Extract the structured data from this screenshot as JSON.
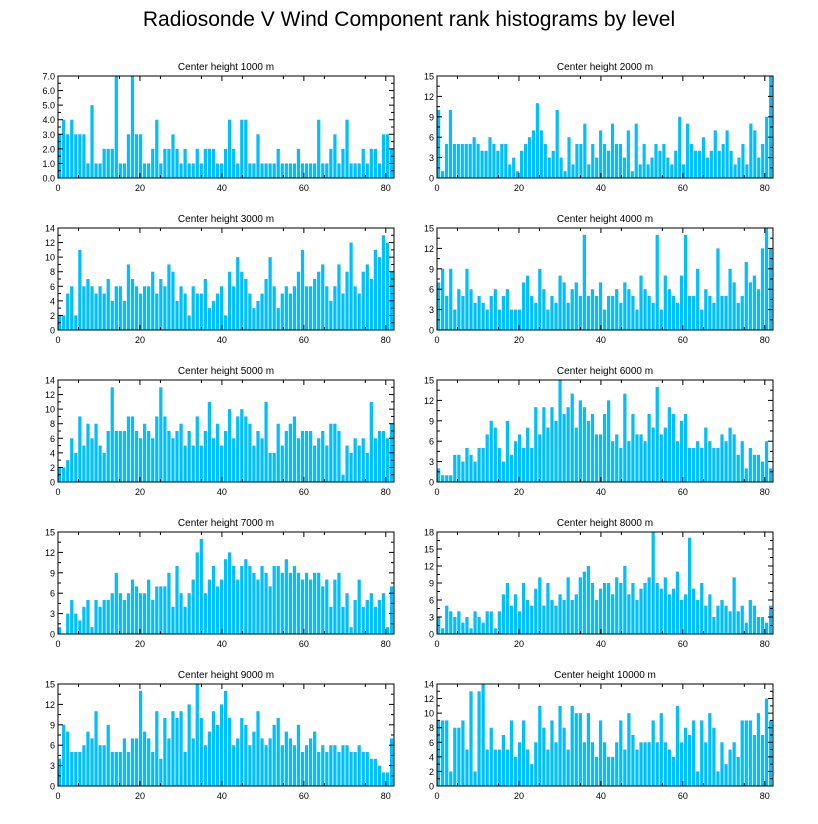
{
  "title": "Radiosonde V Wind Component rank histograms by level",
  "colors": {
    "bar": "#00bfff",
    "axis": "#000000",
    "background": "#ffffff"
  },
  "chart_data": [
    {
      "type": "bar",
      "title": "Center height 1000 m",
      "xlim": [
        0,
        82
      ],
      "ylim": [
        0,
        7
      ],
      "xticks": [
        0,
        20,
        40,
        60,
        80
      ],
      "yticks": [
        0,
        1,
        2,
        3,
        4,
        5,
        6,
        7
      ],
      "ytick_labels": [
        "0.0",
        "1.0",
        "2.0",
        "3.0",
        "4.0",
        "5.0",
        "6.0",
        "7.0"
      ],
      "values": [
        3,
        4,
        3,
        4,
        3,
        3,
        3,
        1,
        5,
        1,
        1,
        2,
        2,
        2,
        7,
        1,
        1,
        3,
        7,
        3,
        3,
        1,
        1,
        2,
        4,
        1,
        2,
        2,
        3,
        2,
        1,
        2,
        1,
        1,
        2,
        1,
        2,
        2,
        2,
        1,
        1,
        2,
        4,
        2,
        1,
        4,
        4,
        1,
        1,
        3,
        1,
        1,
        1,
        1,
        2,
        1,
        1,
        1,
        1,
        2,
        1,
        1,
        1,
        1,
        4,
        1,
        1,
        2,
        3,
        1,
        2,
        4,
        1,
        1,
        1,
        2,
        1,
        2,
        2,
        1,
        3,
        3,
        2
      ]
    },
    {
      "type": "bar",
      "title": "Center height 2000 m",
      "xlim": [
        0,
        82
      ],
      "ylim": [
        0,
        15
      ],
      "xticks": [
        0,
        20,
        40,
        60,
        80
      ],
      "yticks": [
        0,
        3,
        6,
        9,
        12,
        15
      ],
      "ytick_labels": [
        "0",
        "3",
        "6",
        "9",
        "12",
        "15"
      ],
      "values": [
        10,
        1,
        5,
        10,
        5,
        5,
        5,
        5,
        5,
        6,
        5,
        4,
        4,
        6,
        5,
        4,
        5,
        5,
        2,
        3,
        1,
        4,
        5,
        6,
        7,
        11,
        7,
        5,
        3,
        4,
        10,
        3,
        1,
        6,
        2,
        5,
        5,
        8,
        2,
        5,
        3,
        7,
        5,
        4,
        8,
        5,
        5,
        3,
        7,
        1,
        8,
        2,
        5,
        2,
        3,
        5,
        4,
        5,
        3,
        2,
        4,
        9,
        2,
        8,
        5,
        4,
        4,
        6,
        3,
        4,
        7,
        4,
        5,
        7,
        4,
        2,
        3,
        5,
        2,
        8,
        7,
        3,
        5,
        9,
        15
      ]
    },
    {
      "type": "bar",
      "title": "Center height 3000 m",
      "xlim": [
        0,
        82
      ],
      "ylim": [
        0,
        14
      ],
      "xticks": [
        0,
        20,
        40,
        60,
        80
      ],
      "yticks": [
        0,
        2,
        4,
        6,
        8,
        10,
        12,
        14
      ],
      "ytick_labels": [
        "0",
        "2",
        "4",
        "6",
        "8",
        "10",
        "12",
        "14"
      ],
      "values": [
        2,
        2,
        5,
        6,
        2,
        11,
        6,
        7,
        6,
        5,
        6,
        5,
        7,
        4,
        6,
        6,
        4,
        9,
        7,
        6,
        5,
        6,
        6,
        8,
        5,
        7,
        6,
        9,
        8,
        4,
        6,
        5,
        2,
        6,
        5,
        5,
        7,
        3,
        4,
        5,
        6,
        2,
        8,
        6,
        10,
        8,
        7,
        5,
        3,
        4,
        5,
        7,
        10,
        6,
        3,
        5,
        6,
        5,
        6,
        8,
        11,
        6,
        6,
        7,
        8,
        9,
        6,
        4,
        6,
        9,
        5,
        8,
        12,
        6,
        5,
        8,
        9,
        7,
        11,
        10,
        13,
        12,
        8
      ]
    },
    {
      "type": "bar",
      "title": "Center height 4000 m",
      "xlim": [
        0,
        82
      ],
      "ylim": [
        0,
        15
      ],
      "xticks": [
        0,
        20,
        40,
        60,
        80
      ],
      "yticks": [
        0,
        3,
        6,
        9,
        12,
        15
      ],
      "ytick_labels": [
        "0",
        "3",
        "6",
        "9",
        "12",
        "15"
      ],
      "values": [
        7,
        9,
        5,
        9,
        3,
        6,
        5,
        9,
        6,
        4,
        5,
        4,
        3,
        5,
        6,
        3,
        5,
        6,
        3,
        3,
        3,
        7,
        8,
        5,
        4,
        9,
        6,
        3,
        5,
        4,
        8,
        7,
        4,
        6,
        7,
        5,
        14,
        5,
        6,
        5,
        7,
        3,
        5,
        5,
        6,
        4,
        7,
        6,
        5,
        3,
        8,
        6,
        5,
        4,
        14,
        3,
        8,
        6,
        5,
        4,
        8,
        14,
        5,
        5,
        9,
        3,
        6,
        5,
        4,
        12,
        5,
        5,
        9,
        7,
        4,
        5,
        10,
        7,
        8,
        6,
        12,
        15,
        12
      ]
    },
    {
      "type": "bar",
      "title": "Center height 5000 m",
      "xlim": [
        0,
        82
      ],
      "ylim": [
        0,
        14
      ],
      "xticks": [
        0,
        20,
        40,
        60,
        80
      ],
      "yticks": [
        0,
        2,
        4,
        6,
        8,
        10,
        12,
        14
      ],
      "ytick_labels": [
        "0",
        "2",
        "4",
        "6",
        "8",
        "10",
        "12",
        "14"
      ],
      "values": [
        2,
        2,
        3,
        6,
        4,
        9,
        5,
        8,
        6,
        8,
        5,
        4,
        7,
        13,
        7,
        7,
        7,
        9,
        9,
        7,
        6,
        8,
        7,
        6,
        9,
        13,
        9,
        7,
        6,
        7,
        8,
        5,
        7,
        5,
        9,
        5,
        7,
        11,
        6,
        8,
        5,
        7,
        10,
        6,
        9,
        10,
        9,
        8,
        5,
        7,
        6,
        11,
        4,
        4,
        8,
        5,
        7,
        8,
        9,
        6,
        7,
        7,
        7,
        5,
        6,
        7,
        5,
        8,
        8,
        7,
        1,
        5,
        4,
        6,
        5,
        6,
        4,
        11,
        6,
        7,
        7,
        6,
        8
      ]
    },
    {
      "type": "bar",
      "title": "Center height 6000 m",
      "xlim": [
        0,
        82
      ],
      "ylim": [
        0,
        15
      ],
      "xticks": [
        0,
        20,
        40,
        60,
        80
      ],
      "yticks": [
        0,
        3,
        6,
        9,
        12,
        15
      ],
      "ytick_labels": [
        "0",
        "3",
        "6",
        "9",
        "12",
        "15"
      ],
      "values": [
        2,
        1,
        1,
        1,
        4,
        4,
        3,
        5,
        4,
        3,
        5,
        5,
        7,
        9,
        8,
        5,
        3,
        9,
        4,
        6,
        7,
        5,
        8,
        5,
        11,
        7,
        11,
        8,
        11,
        9,
        15,
        10,
        11,
        13,
        8,
        12,
        11,
        9,
        10,
        7,
        7,
        10,
        12,
        6,
        7,
        5,
        13,
        6,
        10,
        7,
        7,
        6,
        10,
        8,
        14,
        7,
        8,
        11,
        10,
        6,
        9,
        10,
        5,
        5,
        6,
        5,
        8,
        6,
        5,
        5,
        7,
        6,
        8,
        7,
        4,
        6,
        2,
        5,
        4,
        4,
        3,
        6,
        2
      ]
    },
    {
      "type": "bar",
      "title": "Center height 7000 m",
      "xlim": [
        0,
        82
      ],
      "ylim": [
        0,
        15
      ],
      "xticks": [
        0,
        20,
        40,
        60,
        80
      ],
      "yticks": [
        0,
        3,
        6,
        9,
        12,
        15
      ],
      "ytick_labels": [
        "0",
        "3",
        "6",
        "9",
        "12",
        "15"
      ],
      "values": [
        1,
        0,
        3,
        5,
        3,
        2,
        4,
        5,
        1,
        5,
        4,
        5,
        5,
        6,
        9,
        6,
        5,
        6,
        8,
        7,
        6,
        6,
        8,
        5,
        7,
        7,
        7,
        9,
        4,
        10,
        6,
        4,
        6,
        8,
        12,
        14,
        6,
        8,
        10,
        7,
        8,
        11,
        12,
        10,
        8,
        10,
        11,
        10,
        9,
        8,
        10,
        9,
        7,
        10,
        10,
        9,
        11,
        9,
        10,
        9,
        8,
        9,
        8,
        9,
        9,
        7,
        8,
        4,
        8,
        9,
        4,
        6,
        1,
        5,
        8,
        4,
        5,
        6,
        4,
        5,
        6,
        1,
        7
      ]
    },
    {
      "type": "bar",
      "title": "Center height 8000 m",
      "xlim": [
        0,
        82
      ],
      "ylim": [
        0,
        18
      ],
      "xticks": [
        0,
        20,
        40,
        60,
        80
      ],
      "yticks": [
        0,
        3,
        6,
        9,
        12,
        15,
        18
      ],
      "ytick_labels": [
        "0",
        "3",
        "6",
        "9",
        "12",
        "15",
        "18"
      ],
      "values": [
        3,
        1,
        5,
        4,
        3,
        4,
        2,
        3,
        1,
        4,
        3,
        2,
        4,
        4,
        1,
        4,
        7,
        9,
        5,
        7,
        4,
        9,
        6,
        5,
        8,
        10,
        5,
        9,
        6,
        5,
        7,
        6,
        10,
        6,
        7,
        10,
        11,
        12,
        9,
        6,
        8,
        9,
        9,
        7,
        10,
        9,
        12,
        7,
        9,
        6,
        8,
        9,
        10,
        18,
        9,
        8,
        10,
        7,
        8,
        11,
        6,
        7,
        17,
        8,
        6,
        9,
        5,
        7,
        3,
        5,
        6,
        5,
        4,
        10,
        4,
        5,
        2,
        6,
        5,
        3,
        3,
        2,
        5
      ]
    },
    {
      "type": "bar",
      "title": "Center height 9000 m",
      "xlim": [
        0,
        82
      ],
      "ylim": [
        0,
        15
      ],
      "xticks": [
        0,
        20,
        40,
        60,
        80
      ],
      "yticks": [
        0,
        3,
        6,
        9,
        12,
        15
      ],
      "ytick_labels": [
        "0",
        "3",
        "6",
        "9",
        "12",
        "15"
      ],
      "values": [
        4,
        9,
        8,
        5,
        5,
        5,
        6,
        8,
        7,
        11,
        6,
        6,
        9,
        5,
        5,
        5,
        7,
        5,
        7,
        7,
        14,
        8,
        7,
        5,
        11,
        4,
        10,
        7,
        11,
        10,
        11,
        5,
        12,
        7,
        15,
        10,
        6,
        8,
        11,
        9,
        12,
        14,
        10,
        6,
        7,
        10,
        9,
        6,
        8,
        11,
        7,
        6,
        7,
        9,
        10,
        6,
        8,
        7,
        6,
        9,
        5,
        6,
        7,
        8,
        5,
        6,
        5,
        6,
        6,
        5,
        6,
        6,
        5,
        5,
        6,
        5,
        5,
        4,
        4,
        3,
        2,
        2,
        7
      ]
    },
    {
      "type": "bar",
      "title": "Center height 10000 m",
      "xlim": [
        0,
        82
      ],
      "ylim": [
        0,
        14
      ],
      "xticks": [
        0,
        20,
        40,
        60,
        80
      ],
      "yticks": [
        0,
        2,
        4,
        6,
        8,
        10,
        12,
        14
      ],
      "ytick_labels": [
        "0",
        "2",
        "4",
        "6",
        "8",
        "10",
        "12",
        "14"
      ],
      "values": [
        9,
        9,
        9,
        2,
        8,
        8,
        9,
        5,
        13,
        2,
        13,
        14,
        5,
        8,
        5,
        5,
        7,
        5,
        9,
        4,
        6,
        9,
        5,
        3,
        6,
        11,
        8,
        5,
        9,
        6,
        11,
        8,
        5,
        11,
        10,
        10,
        6,
        10,
        6,
        4,
        9,
        6,
        4,
        4,
        6,
        9,
        5,
        10,
        7,
        5,
        6,
        6,
        6,
        9,
        6,
        10,
        6,
        5,
        4,
        11,
        6,
        8,
        7,
        9,
        2,
        9,
        6,
        10,
        8,
        2,
        6,
        3,
        5,
        6,
        4,
        9,
        9,
        9,
        7,
        10,
        7,
        12,
        9
      ]
    }
  ]
}
